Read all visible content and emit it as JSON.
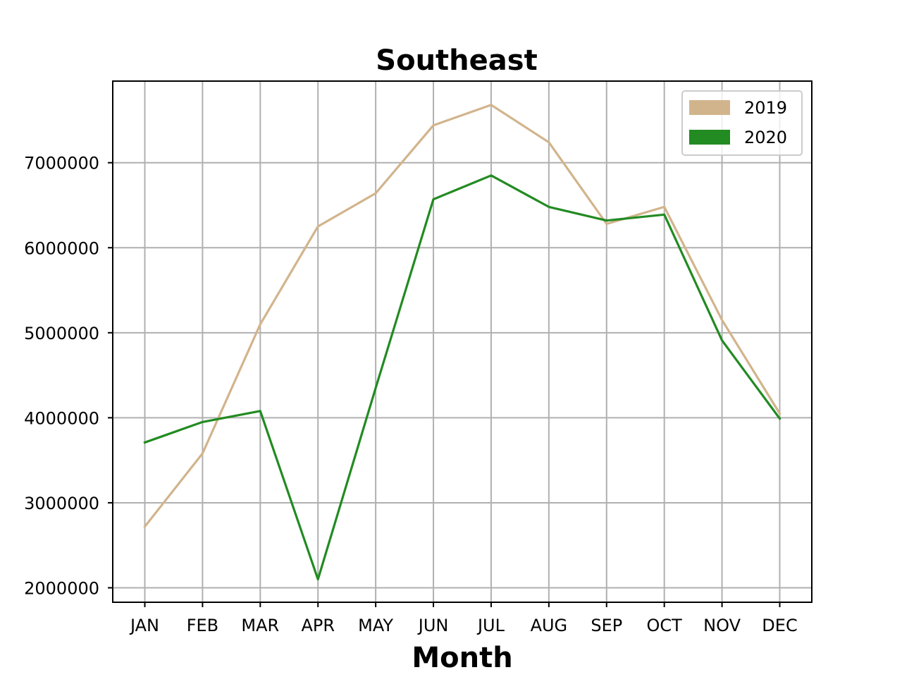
{
  "chart_data": {
    "type": "line",
    "title": "Southeast",
    "xlabel": "Month",
    "ylabel": "",
    "categories": [
      "JAN",
      "FEB",
      "MAR",
      "APR",
      "MAY",
      "JUN",
      "JUL",
      "AUG",
      "SEP",
      "OCT",
      "NOV",
      "DEC"
    ],
    "ylim": [
      1830000,
      7960000
    ],
    "yticks": [
      2000000,
      3000000,
      4000000,
      5000000,
      6000000,
      7000000
    ],
    "ytick_labels": [
      "2000000",
      "3000000",
      "4000000",
      "5000000",
      "6000000",
      "7000000"
    ],
    "grid": true,
    "legend_position": "top-right",
    "series": [
      {
        "name": "2019",
        "color": "#d2b48c",
        "values": [
          2720000,
          3580000,
          5100000,
          6250000,
          6640000,
          7440000,
          7680000,
          7240000,
          6280000,
          6480000,
          5150000,
          4050000
        ]
      },
      {
        "name": "2020",
        "color": "#228b22",
        "values": [
          3710000,
          3950000,
          4080000,
          2100000,
          4350000,
          6570000,
          6850000,
          6480000,
          6320000,
          6390000,
          4910000,
          3990000
        ]
      }
    ]
  }
}
